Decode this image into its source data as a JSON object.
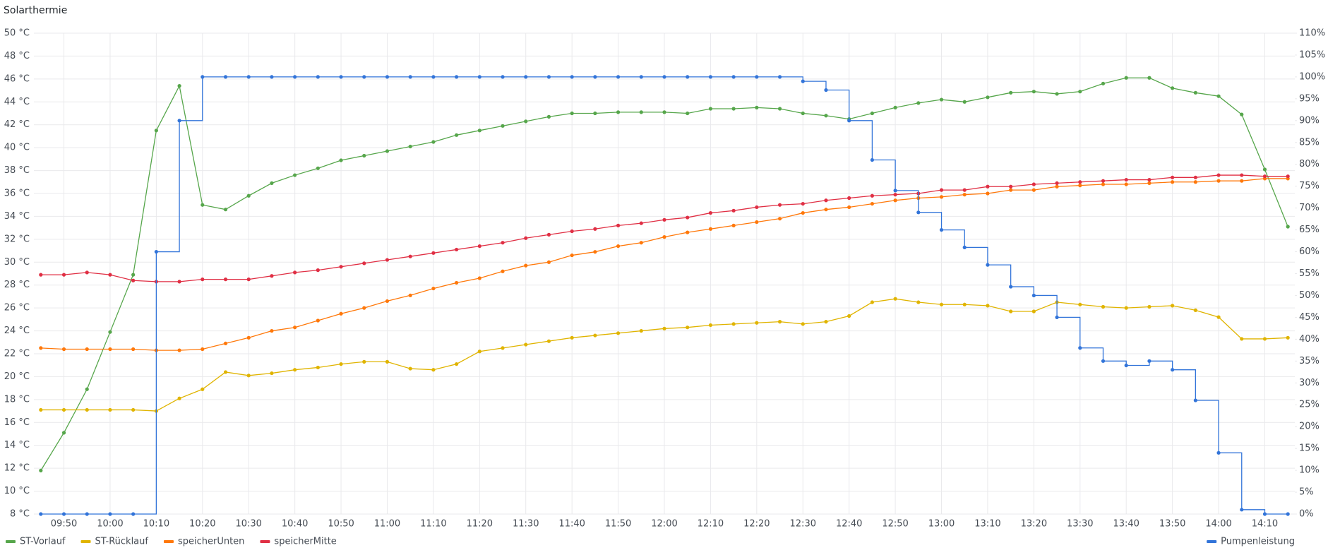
{
  "chart_data": {
    "type": "line",
    "title": "Solarthermie",
    "x": [
      585,
      590,
      595,
      600,
      605,
      610,
      615,
      620,
      625,
      630,
      635,
      640,
      645,
      650,
      655,
      660,
      665,
      670,
      675,
      680,
      685,
      690,
      695,
      700,
      705,
      710,
      715,
      720,
      725,
      730,
      735,
      740,
      745,
      750,
      755,
      760,
      765,
      770,
      775,
      780,
      785,
      790,
      795,
      800,
      805,
      810,
      815,
      820,
      825,
      830,
      835,
      840,
      845,
      850,
      855
    ],
    "xlim": [
      583.5,
      856.5
    ],
    "xticks": [
      {
        "value": 590,
        "label": "09:50"
      },
      {
        "value": 600,
        "label": "10:00"
      },
      {
        "value": 610,
        "label": "10:10"
      },
      {
        "value": 620,
        "label": "10:20"
      },
      {
        "value": 630,
        "label": "10:30"
      },
      {
        "value": 640,
        "label": "10:40"
      },
      {
        "value": 650,
        "label": "10:50"
      },
      {
        "value": 660,
        "label": "11:00"
      },
      {
        "value": 670,
        "label": "11:10"
      },
      {
        "value": 680,
        "label": "11:20"
      },
      {
        "value": 690,
        "label": "11:30"
      },
      {
        "value": 700,
        "label": "11:40"
      },
      {
        "value": 710,
        "label": "11:50"
      },
      {
        "value": 720,
        "label": "12:00"
      },
      {
        "value": 730,
        "label": "12:10"
      },
      {
        "value": 740,
        "label": "12:20"
      },
      {
        "value": 750,
        "label": "12:30"
      },
      {
        "value": 760,
        "label": "12:40"
      },
      {
        "value": 770,
        "label": "12:50"
      },
      {
        "value": 780,
        "label": "13:00"
      },
      {
        "value": 790,
        "label": "13:10"
      },
      {
        "value": 800,
        "label": "13:20"
      },
      {
        "value": 810,
        "label": "13:30"
      },
      {
        "value": 820,
        "label": "13:40"
      },
      {
        "value": 830,
        "label": "13:50"
      },
      {
        "value": 840,
        "label": "14:00"
      },
      {
        "value": 850,
        "label": "14:10"
      }
    ],
    "ylim": [
      8,
      50
    ],
    "yticks": [
      {
        "value": 8,
        "label": "8 °C"
      },
      {
        "value": 10,
        "label": "10 °C"
      },
      {
        "value": 12,
        "label": "12 °C"
      },
      {
        "value": 14,
        "label": "14 °C"
      },
      {
        "value": 16,
        "label": "16 °C"
      },
      {
        "value": 18,
        "label": "18 °C"
      },
      {
        "value": 20,
        "label": "20 °C"
      },
      {
        "value": 22,
        "label": "22 °C"
      },
      {
        "value": 24,
        "label": "24 °C"
      },
      {
        "value": 26,
        "label": "26 °C"
      },
      {
        "value": 28,
        "label": "28 °C"
      },
      {
        "value": 30,
        "label": "30 °C"
      },
      {
        "value": 32,
        "label": "32 °C"
      },
      {
        "value": 34,
        "label": "34 °C"
      },
      {
        "value": 36,
        "label": "36 °C"
      },
      {
        "value": 38,
        "label": "38 °C"
      },
      {
        "value": 40,
        "label": "40 °C"
      },
      {
        "value": 42,
        "label": "42 °C"
      },
      {
        "value": 44,
        "label": "44 °C"
      },
      {
        "value": 46,
        "label": "46 °C"
      },
      {
        "value": 48,
        "label": "48 °C"
      },
      {
        "value": 50,
        "label": "50 °C"
      }
    ],
    "y2lim": [
      0,
      110
    ],
    "y2ticks": [
      {
        "value": 0,
        "label": "0%"
      },
      {
        "value": 5,
        "label": "5%"
      },
      {
        "value": 10,
        "label": "10%"
      },
      {
        "value": 15,
        "label": "15%"
      },
      {
        "value": 20,
        "label": "20%"
      },
      {
        "value": 25,
        "label": "25%"
      },
      {
        "value": 30,
        "label": "30%"
      },
      {
        "value": 35,
        "label": "35%"
      },
      {
        "value": 40,
        "label": "40%"
      },
      {
        "value": 45,
        "label": "45%"
      },
      {
        "value": 50,
        "label": "50%"
      },
      {
        "value": 55,
        "label": "55%"
      },
      {
        "value": 60,
        "label": "60%"
      },
      {
        "value": 65,
        "label": "65%"
      },
      {
        "value": 70,
        "label": "70%"
      },
      {
        "value": 75,
        "label": "75%"
      },
      {
        "value": 80,
        "label": "80%"
      },
      {
        "value": 85,
        "label": "85%"
      },
      {
        "value": 90,
        "label": "90%"
      },
      {
        "value": 95,
        "label": "95%"
      },
      {
        "value": 100,
        "label": "100%"
      },
      {
        "value": 105,
        "label": "105%"
      },
      {
        "value": 110,
        "label": "110%"
      }
    ],
    "grid": true,
    "legend": "bottom",
    "series": [
      {
        "name": "ST-Vorlauf",
        "color": "#56a64b",
        "values": [
          11.8,
          15.1,
          18.9,
          23.9,
          28.9,
          41.5,
          45.4,
          35.0,
          34.6,
          35.8,
          36.9,
          37.6,
          38.2,
          38.9,
          39.3,
          39.7,
          40.1,
          40.5,
          41.1,
          41.5,
          41.9,
          42.3,
          42.7,
          43.0,
          43.0,
          43.1,
          43.1,
          43.1,
          43.0,
          43.4,
          43.4,
          43.5,
          43.4,
          43.0,
          42.8,
          42.5,
          43.0,
          43.5,
          43.9,
          44.2,
          44.0,
          44.4,
          44.8,
          44.9,
          44.7,
          44.9,
          45.6,
          46.1,
          46.1,
          45.2,
          44.8,
          44.5,
          42.9,
          38.1,
          33.1
        ]
      },
      {
        "name": "ST-Rücklauf",
        "color": "#e0b400",
        "values": [
          17.1,
          17.1,
          17.1,
          17.1,
          17.1,
          17.0,
          18.1,
          18.9,
          20.4,
          20.1,
          20.3,
          20.6,
          20.8,
          21.1,
          21.3,
          21.3,
          20.7,
          20.6,
          21.1,
          22.2,
          22.5,
          22.8,
          23.1,
          23.4,
          23.6,
          23.8,
          24.0,
          24.2,
          24.3,
          24.5,
          24.6,
          24.7,
          24.8,
          24.6,
          24.8,
          25.3,
          26.5,
          26.8,
          26.5,
          26.3,
          26.3,
          26.2,
          25.7,
          25.7,
          26.5,
          26.3,
          26.1,
          26.0,
          26.1,
          26.2,
          25.8,
          25.2,
          23.3,
          23.3,
          23.4
        ]
      },
      {
        "name": "speicherUnten",
        "color": "#ff780a",
        "values": [
          22.5,
          22.4,
          22.4,
          22.4,
          22.4,
          22.3,
          22.3,
          22.4,
          22.9,
          23.4,
          24.0,
          24.3,
          24.9,
          25.5,
          26.0,
          26.6,
          27.1,
          27.7,
          28.2,
          28.6,
          29.2,
          29.7,
          30.0,
          30.6,
          30.9,
          31.4,
          31.7,
          32.2,
          32.6,
          32.9,
          33.2,
          33.5,
          33.8,
          34.3,
          34.6,
          34.8,
          35.1,
          35.4,
          35.6,
          35.7,
          35.9,
          36.0,
          36.3,
          36.3,
          36.6,
          36.7,
          36.8,
          36.8,
          36.9,
          37.0,
          37.0,
          37.1,
          37.1,
          37.3,
          37.3
        ]
      },
      {
        "name": "speicherMitte",
        "color": "#e02f44",
        "values": [
          28.9,
          28.9,
          29.1,
          28.9,
          28.4,
          28.3,
          28.3,
          28.5,
          28.5,
          28.5,
          28.8,
          29.1,
          29.3,
          29.6,
          29.9,
          30.2,
          30.5,
          30.8,
          31.1,
          31.4,
          31.7,
          32.1,
          32.4,
          32.7,
          32.9,
          33.2,
          33.4,
          33.7,
          33.9,
          34.3,
          34.5,
          34.8,
          35.0,
          35.1,
          35.4,
          35.6,
          35.8,
          35.9,
          36.0,
          36.3,
          36.3,
          36.6,
          36.6,
          36.8,
          36.9,
          37.0,
          37.1,
          37.2,
          37.2,
          37.4,
          37.4,
          37.6,
          37.6,
          37.5,
          37.5
        ]
      },
      {
        "name": "Pumpenleistung",
        "color": "#3274d9",
        "axis": "y2",
        "step": "after",
        "values": [
          0,
          0,
          0,
          0,
          0,
          60,
          90,
          100,
          100,
          100,
          100,
          100,
          100,
          100,
          100,
          100,
          100,
          100,
          100,
          100,
          100,
          100,
          100,
          100,
          100,
          100,
          100,
          100,
          100,
          100,
          100,
          100,
          100,
          99,
          97,
          90,
          81,
          74,
          69,
          65,
          61,
          57,
          52,
          50,
          45,
          38,
          35,
          34,
          35,
          33,
          26,
          14,
          1,
          0,
          0
        ]
      }
    ]
  }
}
